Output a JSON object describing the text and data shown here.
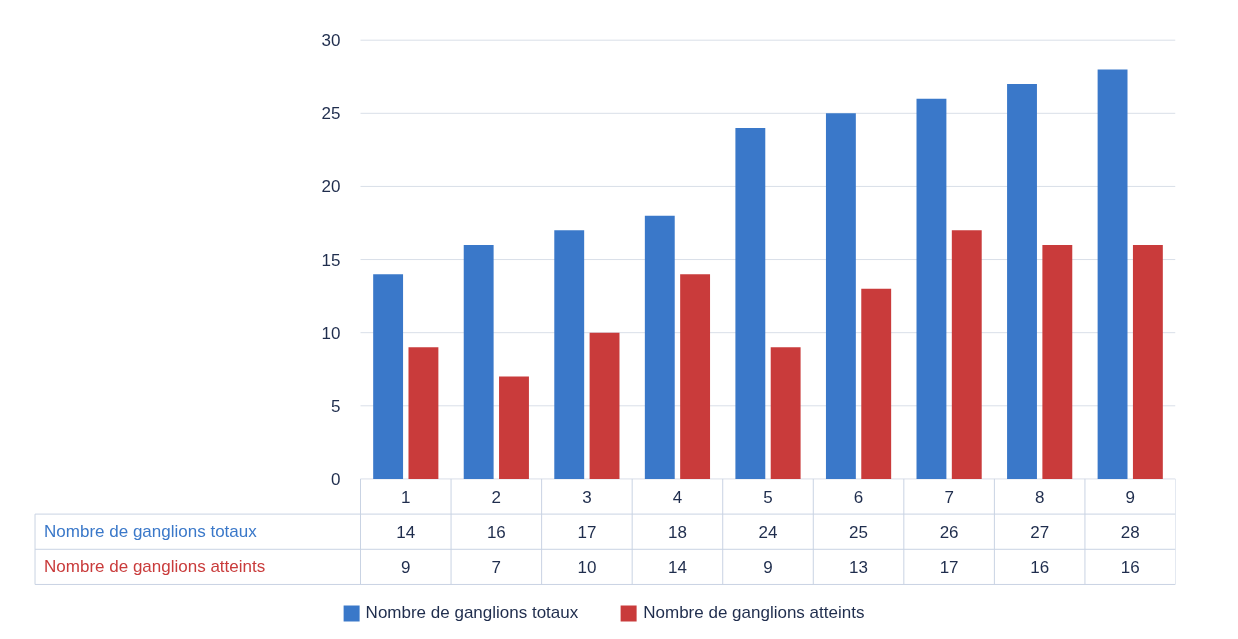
{
  "chart_data": {
    "type": "bar",
    "categories": [
      "1",
      "2",
      "3",
      "4",
      "5",
      "6",
      "7",
      "8",
      "9"
    ],
    "series": [
      {
        "name": "Nombre de ganglions totaux",
        "color": "#3a78c9",
        "values": [
          14,
          16,
          17,
          18,
          24,
          25,
          26,
          27,
          28
        ]
      },
      {
        "name": "Nombre de ganglions atteints",
        "color": "#c93b3b",
        "values": [
          9,
          7,
          10,
          14,
          9,
          13,
          17,
          16,
          16
        ]
      }
    ],
    "ylim": [
      0,
      30
    ],
    "yticks": [
      0,
      5,
      10,
      15,
      20,
      25,
      30
    ],
    "grid": "y",
    "data_labels": true,
    "legend": "bottom"
  }
}
